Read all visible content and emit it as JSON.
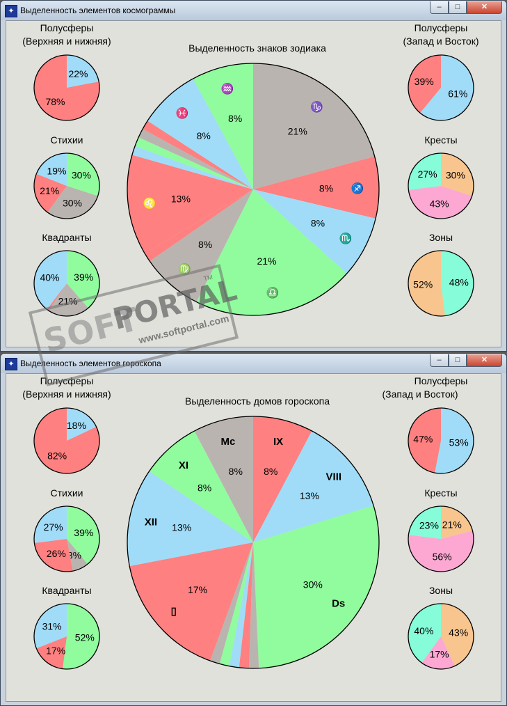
{
  "colors": {
    "red": "#fe8080",
    "blue": "#a0dcf8",
    "green": "#90fc9e",
    "gray": "#bab4b0",
    "orange": "#f8c58f",
    "pink": "#fca8d2",
    "aqua": "#86fcd8"
  },
  "windows": [
    {
      "title": "Выделенность элементов космограммы",
      "controls": {
        "minimize": "‒",
        "maximize": "□",
        "close": "✕"
      },
      "main": {
        "title": "Выделенность знаков зодиака",
        "slices": [
          {
            "value": 21,
            "color": "gray",
            "label": "21%",
            "glyph": "♑"
          },
          {
            "value": 8,
            "color": "red",
            "label": "8%",
            "glyph": "♐"
          },
          {
            "value": 8,
            "color": "blue",
            "label": "8%",
            "glyph": "♏"
          },
          {
            "value": 21,
            "color": "green",
            "label": "21%",
            "glyph": "♎"
          },
          {
            "value": 8,
            "color": "gray",
            "label": "8%",
            "glyph": "♍"
          },
          {
            "value": 1.2,
            "color": "red",
            "label": "",
            "glyph": ""
          },
          {
            "value": 13,
            "color": "red",
            "label": "13%",
            "glyph": "♌"
          },
          {
            "value": 1.2,
            "color": "blue",
            "label": "",
            "glyph": ""
          },
          {
            "value": 1.2,
            "color": "green",
            "label": "",
            "glyph": ""
          },
          {
            "value": 1.2,
            "color": "gray",
            "label": "",
            "glyph": ""
          },
          {
            "value": 1.2,
            "color": "red",
            "label": "",
            "glyph": ""
          },
          {
            "value": 8,
            "color": "blue",
            "label": "8%",
            "glyph": "♓"
          },
          {
            "value": 8,
            "color": "green",
            "label": "8%",
            "glyph": "♒"
          }
        ]
      },
      "small": [
        {
          "title": [
            "Полусферы",
            "(Верхняя и нижняя)"
          ],
          "slices": [
            {
              "value": 22,
              "color": "blue",
              "label": "22%"
            },
            {
              "value": 78,
              "color": "red",
              "label": "78%"
            }
          ]
        },
        {
          "title": [
            "Стихии"
          ],
          "slices": [
            {
              "value": 30,
              "color": "green",
              "label": "30%"
            },
            {
              "value": 30,
              "color": "gray",
              "label": "30%"
            },
            {
              "value": 21,
              "color": "red",
              "label": "21%"
            },
            {
              "value": 19,
              "color": "blue",
              "label": "19%"
            }
          ]
        },
        {
          "title": [
            "Квадранты"
          ],
          "slices": [
            {
              "value": 39,
              "color": "green",
              "label": "39%"
            },
            {
              "value": 21,
              "color": "gray",
              "label": "21%"
            },
            {
              "value": 1,
              "color": "red",
              "label": ""
            },
            {
              "value": 40,
              "color": "blue",
              "label": "40%"
            }
          ]
        },
        {
          "title": [
            "Полусферы",
            "(Запад и Восток)"
          ],
          "slices": [
            {
              "value": 61,
              "color": "blue",
              "label": "61%"
            },
            {
              "value": 39,
              "color": "red",
              "label": "39%"
            }
          ]
        },
        {
          "title": [
            "Кресты"
          ],
          "slices": [
            {
              "value": 30,
              "color": "orange",
              "label": "30%"
            },
            {
              "value": 43,
              "color": "pink",
              "label": "43%"
            },
            {
              "value": 27,
              "color": "aqua",
              "label": "27%"
            }
          ]
        },
        {
          "title": [
            "Зоны"
          ],
          "slices": [
            {
              "value": 48,
              "color": "aqua",
              "label": "48%"
            },
            {
              "value": 52,
              "color": "orange",
              "label": "52%"
            }
          ]
        }
      ]
    },
    {
      "title": "Выделенность элементов гороскопа",
      "controls": {
        "minimize": "‒",
        "maximize": "□",
        "close": "✕"
      },
      "main": {
        "title": "Выделенность домов гороскопа",
        "slices": [
          {
            "value": 8,
            "color": "red",
            "label": "8%",
            "glyph": "IX"
          },
          {
            "value": 13,
            "color": "blue",
            "label": "13%",
            "glyph": "VIII"
          },
          {
            "value": 30,
            "color": "green",
            "label": "30%",
            "glyph": "Ds"
          },
          {
            "value": 1.3,
            "color": "gray",
            "label": "",
            "glyph": ""
          },
          {
            "value": 1.3,
            "color": "red",
            "label": "",
            "glyph": ""
          },
          {
            "value": 1.3,
            "color": "blue",
            "label": "",
            "glyph": ""
          },
          {
            "value": 1.3,
            "color": "green",
            "label": "",
            "glyph": ""
          },
          {
            "value": 1.3,
            "color": "gray",
            "label": "",
            "glyph": ""
          },
          {
            "value": 17,
            "color": "red",
            "label": "17%",
            "glyph": "▯"
          },
          {
            "value": 13,
            "color": "blue",
            "label": "13%",
            "glyph": "XII"
          },
          {
            "value": 8,
            "color": "green",
            "label": "8%",
            "glyph": "XI"
          },
          {
            "value": 8,
            "color": "gray",
            "label": "8%",
            "glyph": "Mc"
          }
        ]
      },
      "small": [
        {
          "title": [
            "Полусферы",
            "(Верхняя и нижняя)"
          ],
          "slices": [
            {
              "value": 18,
              "color": "blue",
              "label": "18%"
            },
            {
              "value": 82,
              "color": "red",
              "label": "82%"
            }
          ]
        },
        {
          "title": [
            "Стихии"
          ],
          "slices": [
            {
              "value": 39,
              "color": "green",
              "label": "39%"
            },
            {
              "value": 8,
              "color": "gray",
              "label": "8%"
            },
            {
              "value": 26,
              "color": "red",
              "label": "26%"
            },
            {
              "value": 27,
              "color": "blue",
              "label": "27%"
            }
          ]
        },
        {
          "title": [
            "Квадранты"
          ],
          "slices": [
            {
              "value": 52,
              "color": "green",
              "label": "52%"
            },
            {
              "value": 17,
              "color": "red",
              "label": "17%"
            },
            {
              "value": 31,
              "color": "blue",
              "label": "31%"
            }
          ]
        },
        {
          "title": [
            "Полусферы",
            "(Запад и Восток)"
          ],
          "slices": [
            {
              "value": 53,
              "color": "blue",
              "label": "53%"
            },
            {
              "value": 47,
              "color": "red",
              "label": "47%"
            }
          ]
        },
        {
          "title": [
            "Кресты"
          ],
          "slices": [
            {
              "value": 21,
              "color": "orange",
              "label": "21%"
            },
            {
              "value": 56,
              "color": "pink",
              "label": "56%"
            },
            {
              "value": 23,
              "color": "aqua",
              "label": "23%"
            }
          ]
        },
        {
          "title": [
            "Зоны"
          ],
          "slices": [
            {
              "value": 43,
              "color": "orange",
              "label": "43%"
            },
            {
              "value": 17,
              "color": "pink",
              "label": "17%"
            },
            {
              "value": 40,
              "color": "aqua",
              "label": "40%"
            }
          ]
        }
      ]
    }
  ],
  "watermark": {
    "soft": "SOFT",
    "portal": "PORTAL",
    "url": "www.softportal.com",
    "tm": "TM"
  }
}
